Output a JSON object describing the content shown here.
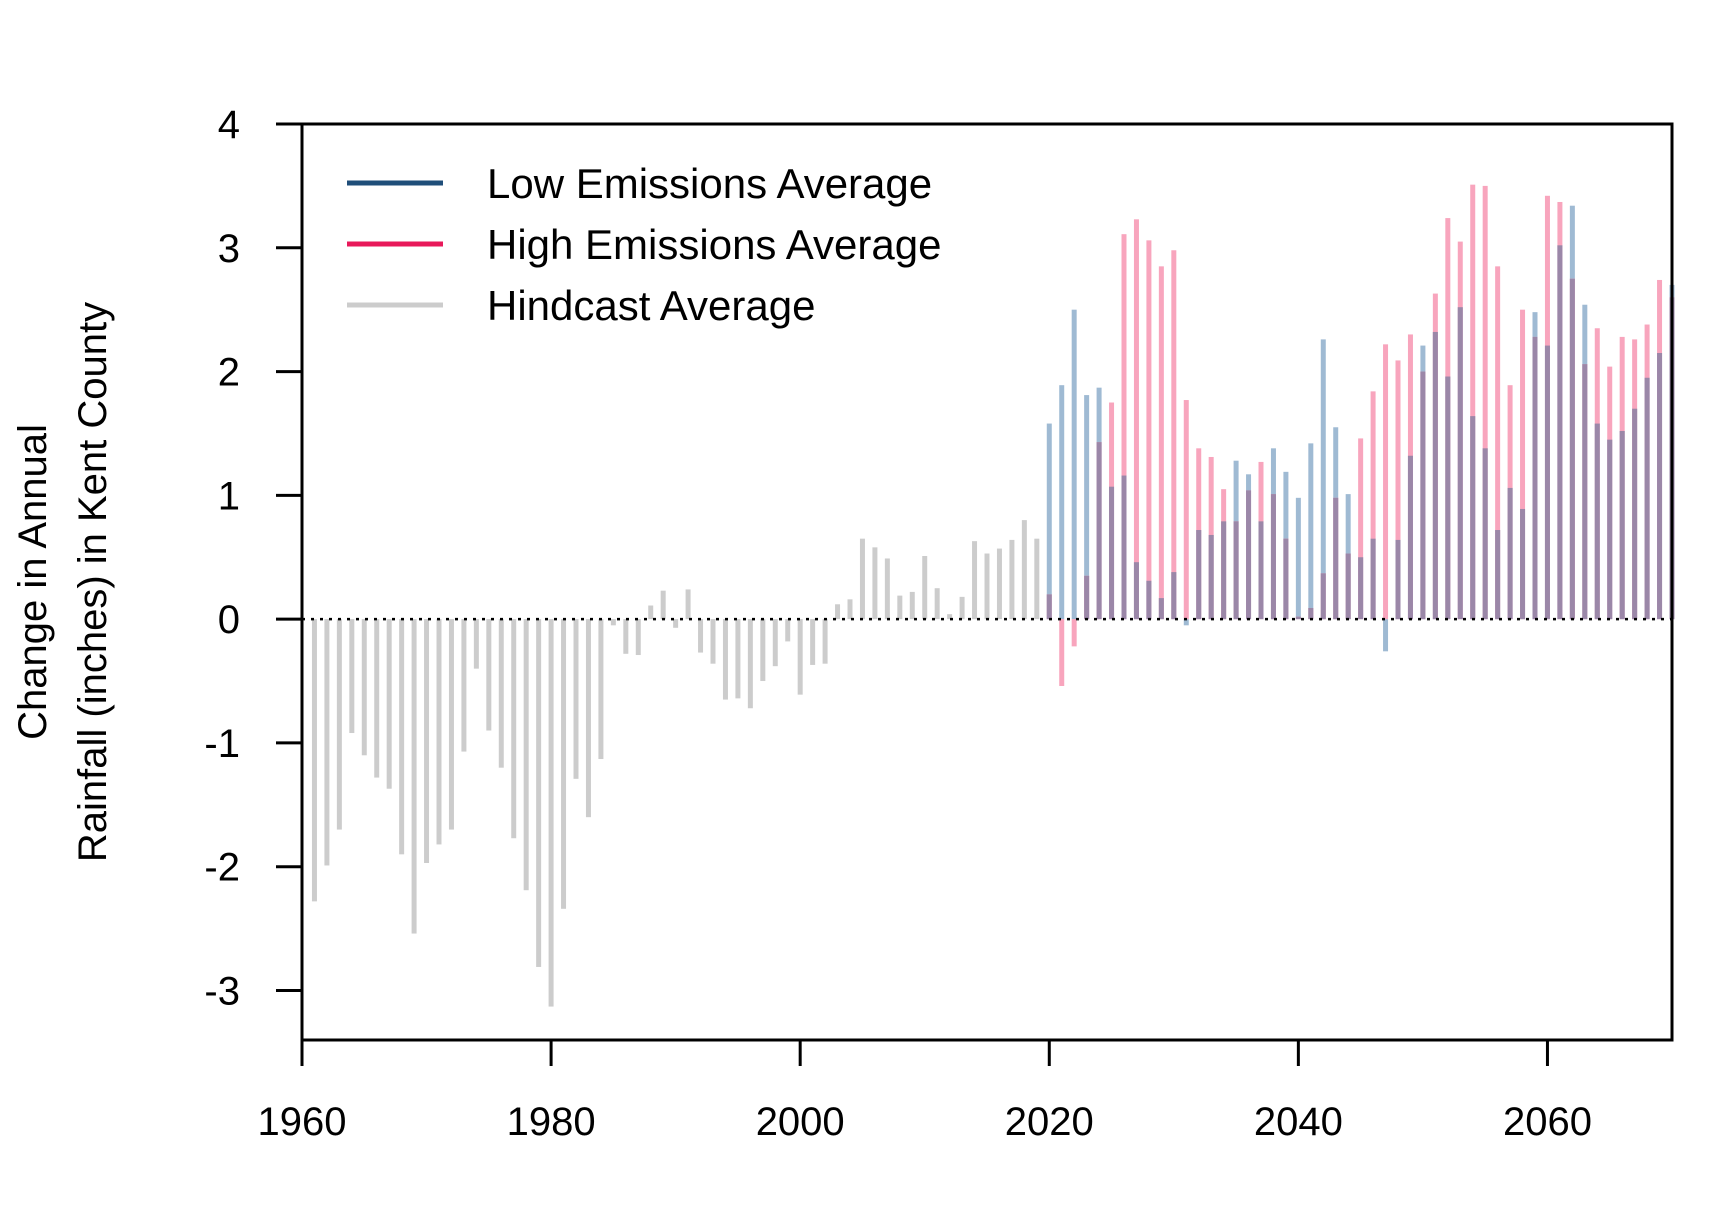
{
  "chart_data": {
    "type": "bar",
    "title": "",
    "xlabel": "",
    "ylabel_lines": [
      "Change in Annual",
      "Rainfall (inches) in Kent County"
    ],
    "xlim": [
      1960,
      2070
    ],
    "ylim": [
      -3.4,
      4
    ],
    "x_ticks": [
      1960,
      1980,
      2000,
      2020,
      2040,
      2060
    ],
    "y_ticks": [
      -3,
      -2,
      -1,
      0,
      1,
      2,
      3,
      4
    ],
    "reference_line": {
      "y": 0,
      "style": "dotted"
    },
    "legend": {
      "placement": "top-left",
      "entries": [
        {
          "label": "Low Emissions Average",
          "color": "#1f4e79"
        },
        {
          "label": "High Emissions Average",
          "color": "#e8195a"
        },
        {
          "label": "Hindcast Average",
          "color": "#cccccc"
        }
      ]
    },
    "colors": {
      "hindcast": "#cccccc",
      "low": "#9fbad3",
      "high": "#f8a5bd",
      "overlap": "#9b87a8"
    },
    "series": [
      {
        "name": "Hindcast Average",
        "x": [
          1961,
          1962,
          1963,
          1964,
          1965,
          1966,
          1967,
          1968,
          1969,
          1970,
          1971,
          1972,
          1973,
          1974,
          1975,
          1976,
          1977,
          1978,
          1979,
          1980,
          1981,
          1982,
          1983,
          1984,
          1985,
          1986,
          1987,
          1988,
          1989,
          1990,
          1991,
          1992,
          1993,
          1994,
          1995,
          1996,
          1997,
          1998,
          1999,
          2000,
          2001,
          2002,
          2003,
          2004,
          2005,
          2006,
          2007,
          2008,
          2009,
          2010,
          2011,
          2012,
          2013,
          2014,
          2015,
          2016,
          2017,
          2018,
          2019
        ],
        "values": [
          -2.28,
          -1.99,
          -1.7,
          -0.92,
          -1.1,
          -1.28,
          -1.37,
          -1.9,
          -2.54,
          -1.97,
          -1.82,
          -1.7,
          -1.07,
          -0.4,
          -0.9,
          -1.2,
          -1.77,
          -2.19,
          -2.81,
          -3.13,
          -2.34,
          -1.29,
          -1.6,
          -1.13,
          -0.05,
          -0.28,
          -0.29,
          0.11,
          0.23,
          -0.07,
          0.24,
          -0.27,
          -0.36,
          -0.65,
          -0.64,
          -0.72,
          -0.5,
          -0.38,
          -0.18,
          -0.61,
          -0.37,
          -0.36,
          0.12,
          0.16,
          0.65,
          0.58,
          0.49,
          0.19,
          0.22,
          0.51,
          0.25,
          0.04,
          0.18,
          0.63,
          0.53,
          0.57,
          0.64,
          0.8,
          0.65
        ]
      },
      {
        "name": "Low Emissions Average",
        "x": [
          2020,
          2021,
          2022,
          2023,
          2024,
          2025,
          2026,
          2027,
          2028,
          2029,
          2030,
          2031,
          2032,
          2033,
          2034,
          2035,
          2036,
          2037,
          2038,
          2039,
          2040,
          2041,
          2042,
          2043,
          2044,
          2045,
          2046,
          2047,
          2048,
          2049,
          2050,
          2051,
          2052,
          2053,
          2054,
          2055,
          2056,
          2057,
          2058,
          2059,
          2060,
          2061,
          2062,
          2063,
          2064,
          2065,
          2066,
          2067,
          2068,
          2069,
          2070
        ],
        "values": [
          1.58,
          1.89,
          2.5,
          1.81,
          1.87,
          1.07,
          1.16,
          0.46,
          0.31,
          0.17,
          0.38,
          -0.05,
          0.72,
          0.68,
          0.79,
          1.28,
          1.17,
          0.79,
          1.38,
          1.19,
          0.98,
          1.42,
          2.26,
          1.55,
          1.01,
          0.5,
          0.65,
          -0.26,
          0.64,
          1.32,
          2.21,
          2.32,
          1.96,
          2.52,
          1.64,
          1.38,
          0.72,
          1.06,
          0.89,
          2.48,
          2.21,
          3.02,
          3.34,
          2.54,
          1.58,
          1.45,
          1.52,
          1.7,
          1.95,
          2.15,
          2.7
        ]
      },
      {
        "name": "High Emissions Average",
        "x": [
          2020,
          2021,
          2022,
          2023,
          2024,
          2025,
          2026,
          2027,
          2028,
          2029,
          2030,
          2031,
          2032,
          2033,
          2034,
          2035,
          2036,
          2037,
          2038,
          2039,
          2040,
          2041,
          2042,
          2043,
          2044,
          2045,
          2046,
          2047,
          2048,
          2049,
          2050,
          2051,
          2052,
          2053,
          2054,
          2055,
          2056,
          2057,
          2058,
          2059,
          2060,
          2061,
          2062,
          2063,
          2064,
          2065,
          2066,
          2067,
          2068,
          2069,
          2070
        ],
        "values": [
          0.2,
          -0.54,
          -0.22,
          0.35,
          1.43,
          1.75,
          3.11,
          3.23,
          3.06,
          2.85,
          2.98,
          1.77,
          1.38,
          1.31,
          1.05,
          0.79,
          1.04,
          1.27,
          1.01,
          0.65,
          0.02,
          0.09,
          0.37,
          0.98,
          0.53,
          1.46,
          1.84,
          2.22,
          2.09,
          2.3,
          2.0,
          2.63,
          3.24,
          3.05,
          3.51,
          3.5,
          2.85,
          1.89,
          2.5,
          2.28,
          3.42,
          3.37,
          2.75,
          2.06,
          2.35,
          2.04,
          2.28,
          2.26,
          2.38,
          2.74,
          2.6
        ]
      }
    ]
  }
}
